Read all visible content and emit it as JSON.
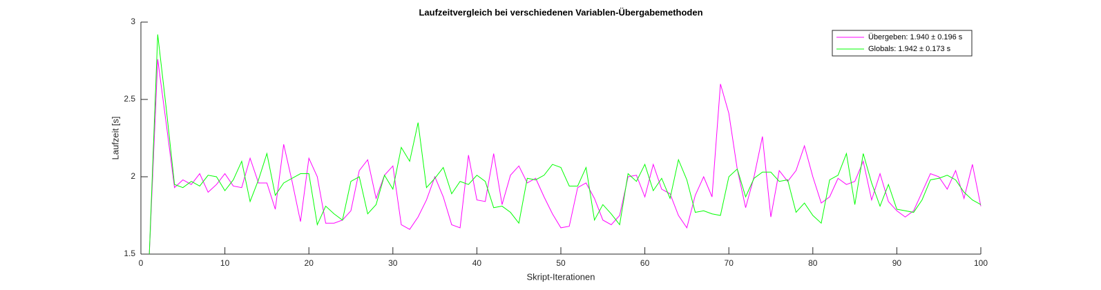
{
  "chart_data": {
    "type": "line",
    "title": "Laufzeitvergleich bei verschiedenen Variablen-Übergabemethoden",
    "xlabel": "Skript-Iterationen",
    "ylabel": "Laufzeit [s]",
    "x": [
      1,
      2,
      3,
      4,
      5,
      6,
      7,
      8,
      9,
      10,
      11,
      12,
      13,
      14,
      15,
      16,
      17,
      18,
      19,
      20,
      21,
      22,
      23,
      24,
      25,
      26,
      27,
      28,
      29,
      30,
      31,
      32,
      33,
      34,
      35,
      36,
      37,
      38,
      39,
      40,
      41,
      42,
      43,
      44,
      45,
      46,
      47,
      48,
      49,
      50,
      51,
      52,
      53,
      54,
      55,
      56,
      57,
      58,
      59,
      60,
      61,
      62,
      63,
      64,
      65,
      66,
      67,
      68,
      69,
      70,
      71,
      72,
      73,
      74,
      75,
      76,
      77,
      78,
      79,
      80,
      81,
      82,
      83,
      84,
      85,
      86,
      87,
      88,
      89,
      90,
      91,
      92,
      93,
      94,
      95,
      96,
      97,
      98,
      99,
      100
    ],
    "series": [
      {
        "name": "Übergeben: 1.940 ± 0.196 s",
        "color": "#ff00ff",
        "values": [
          1.5,
          2.76,
          2.35,
          1.93,
          1.98,
          1.95,
          2.02,
          1.9,
          1.95,
          2.02,
          1.94,
          1.93,
          2.12,
          1.96,
          1.96,
          1.79,
          2.21,
          1.97,
          1.71,
          2.12,
          2.0,
          1.7,
          1.7,
          1.72,
          1.78,
          2.04,
          2.11,
          1.86,
          2.01,
          2.07,
          1.69,
          1.66,
          1.74,
          1.85,
          2.0,
          1.87,
          1.69,
          1.67,
          2.14,
          1.85,
          1.84,
          2.15,
          1.82,
          2.01,
          2.07,
          1.96,
          1.99,
          1.87,
          1.76,
          1.67,
          1.68,
          1.93,
          1.96,
          1.86,
          1.72,
          1.69,
          1.75,
          2.0,
          2.01,
          1.87,
          2.08,
          1.92,
          1.89,
          1.75,
          1.67,
          1.88,
          2.0,
          1.87,
          2.6,
          2.41,
          2.05,
          1.8,
          2.0,
          2.26,
          1.74,
          2.04,
          1.97,
          2.04,
          2.2,
          2.0,
          1.83,
          1.87,
          1.99,
          1.95,
          1.97,
          2.1,
          1.85,
          2.02,
          1.84,
          1.78,
          1.74,
          1.78,
          1.9,
          2.02,
          2.0,
          1.92,
          2.04,
          1.86,
          2.08,
          1.81
        ]
      },
      {
        "name": "Globals: 1.942 ± 0.173 s",
        "color": "#00ff00",
        "values": [
          1.5,
          2.92,
          2.45,
          1.95,
          1.93,
          1.97,
          1.94,
          2.01,
          2.0,
          1.91,
          1.98,
          2.1,
          1.84,
          1.98,
          2.15,
          1.88,
          1.96,
          1.99,
          2.02,
          2.02,
          1.69,
          1.81,
          1.76,
          1.72,
          1.97,
          2.0,
          1.76,
          1.82,
          2.01,
          1.92,
          2.19,
          2.1,
          2.35,
          1.93,
          1.99,
          2.06,
          1.89,
          1.97,
          1.95,
          2.01,
          1.97,
          1.8,
          1.81,
          1.77,
          1.7,
          1.99,
          1.98,
          2.01,
          2.08,
          2.06,
          1.94,
          1.94,
          2.06,
          1.72,
          1.82,
          1.76,
          1.69,
          2.02,
          1.97,
          2.08,
          1.91,
          1.99,
          1.86,
          2.11,
          1.98,
          1.77,
          1.78,
          1.76,
          1.75,
          2.0,
          2.05,
          1.87,
          1.99,
          2.03,
          2.03,
          1.97,
          1.98,
          1.77,
          1.83,
          1.75,
          1.7,
          1.98,
          2.01,
          2.15,
          1.82,
          2.15,
          1.96,
          1.81,
          1.95,
          1.79,
          1.78,
          1.77,
          1.85,
          1.98,
          1.99,
          2.01,
          1.98,
          1.9,
          1.85,
          1.82
        ]
      }
    ],
    "xlim": [
      0,
      100
    ],
    "xticks": [
      0,
      10,
      20,
      30,
      40,
      50,
      60,
      70,
      80,
      90,
      100
    ],
    "ylim": [
      1.5,
      3
    ],
    "yticks": [
      1.5,
      2,
      2.5,
      3
    ],
    "grid": false,
    "legend": "northeast"
  }
}
